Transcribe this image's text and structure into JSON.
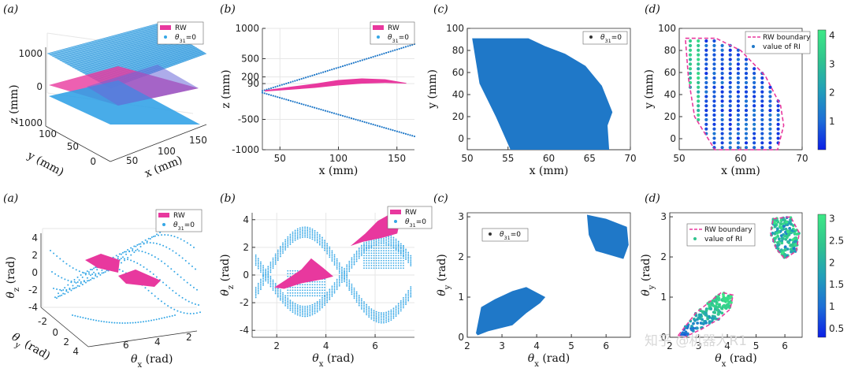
{
  "watermark": "知乎 @机器人R1",
  "colors": {
    "pink": "#e8389e",
    "blue": "#1f78c8",
    "light_blue": "#35a7e6",
    "grid": "#e6e6e6"
  },
  "chart_data": [
    {
      "id": "row1_a",
      "panel_label": "(a)",
      "type": "3d-surface",
      "title": "",
      "xlabel": "x (mm)",
      "ylabel": "y (mm)",
      "zlabel": "z (mm)",
      "x_ticks": [
        "50",
        "100",
        "150"
      ],
      "y_ticks": [
        "0",
        "50",
        "100"
      ],
      "z_ticks": [
        "-1000",
        "0",
        "1000"
      ],
      "legend": [
        "RW",
        "θ31=0"
      ],
      "series": [
        {
          "name": "RW",
          "kind": "surface",
          "color": "#e8389e",
          "z_range": [
            -200,
            200
          ]
        },
        {
          "name": "θ31=0",
          "kind": "points",
          "color": "#35a7e6",
          "z_range": [
            -1000,
            1000
          ]
        }
      ]
    },
    {
      "id": "row1_b",
      "panel_label": "(b)",
      "type": "line",
      "xlabel": "x (mm)",
      "ylabel": "z (mm)",
      "xlim": [
        35,
        165
      ],
      "ylim": [
        -1000,
        1000
      ],
      "x_ticks": [
        50,
        100,
        150
      ],
      "y_ticks": [
        -1000,
        -500,
        90,
        200,
        500,
        1000
      ],
      "legend": [
        "RW",
        "θ31=0"
      ],
      "series": [
        {
          "name": "θ31=0 upper",
          "kind": "dotted-line",
          "color": "#1f78c8",
          "x": [
            35,
            165
          ],
          "y": [
            -30,
            740
          ]
        },
        {
          "name": "θ31=0 lower",
          "kind": "dotted-line",
          "color": "#1f78c8",
          "x": [
            35,
            165
          ],
          "y": [
            -60,
            -780
          ]
        },
        {
          "name": "RW",
          "kind": "band",
          "color": "#e8389e",
          "x": [
            37,
            60,
            80,
            100,
            120,
            140,
            158
          ],
          "upper": [
            -20,
            40,
            90,
            150,
            175,
            160,
            100
          ],
          "lower": [
            -40,
            -10,
            20,
            60,
            90,
            100,
            90
          ]
        }
      ]
    },
    {
      "id": "row1_c",
      "panel_label": "(c)",
      "type": "scatter",
      "xlabel": "x (mm)",
      "ylabel": "y (mm)",
      "xlim": [
        50,
        70
      ],
      "ylim": [
        -10,
        100
      ],
      "x_ticks": [
        50,
        55,
        60,
        65,
        70
      ],
      "y_ticks": [
        0,
        20,
        40,
        60,
        80,
        100
      ],
      "legend": [
        "θ31=0"
      ],
      "series": [
        {
          "name": "θ31=0",
          "kind": "filled-region",
          "color": "#1f78c8",
          "x": [
            50.6,
            57.5,
            59.5,
            62,
            64.5,
            66.5,
            67.8,
            67.2,
            67.4,
            55.3,
            53.5,
            51.5,
            50.6
          ],
          "y": [
            91,
            91,
            84,
            77,
            66,
            48,
            24,
            12,
            -10,
            -10,
            20,
            50,
            91
          ]
        }
      ]
    },
    {
      "id": "row1_d",
      "panel_label": "(d)",
      "type": "scatter",
      "xlabel": "x (mm)",
      "ylabel": "y (mm)",
      "xlim": [
        50,
        70
      ],
      "ylim": [
        -10,
        100
      ],
      "x_ticks": [
        50,
        60,
        70
      ],
      "y_ticks": [
        0,
        20,
        40,
        60,
        80,
        100
      ],
      "legend": [
        "RW boundary",
        "value of RI"
      ],
      "colorbar": {
        "min": 0,
        "max": 4.2,
        "ticks": [
          1,
          2,
          3,
          4
        ]
      },
      "series": [
        {
          "name": "RW boundary",
          "kind": "dashed-line",
          "color": "#e8389e",
          "x": [
            51,
            56,
            60,
            64,
            66.5,
            67,
            66,
            55.8,
            52.5,
            51.5,
            51
          ],
          "y": [
            91,
            91,
            80,
            57,
            30,
            12,
            -10,
            -10,
            20,
            55,
            91
          ]
        },
        {
          "name": "value of RI",
          "kind": "colored-points",
          "colormap": "parula",
          "columns_x": [
            51.8,
            53.1,
            54.4,
            55.7,
            57.0,
            58.3,
            59.6,
            60.9,
            62.2,
            63.5,
            64.8,
            66.1
          ]
        }
      ]
    },
    {
      "id": "row2_a",
      "panel_label": "(a)",
      "type": "3d-scatter",
      "xlabel": "θx (rad)",
      "ylabel": "θy (rad)",
      "zlabel": "θz (rad)",
      "x_ticks": [
        "2",
        "4",
        "6"
      ],
      "y_ticks": [
        "-2",
        "0",
        "2",
        "4"
      ],
      "z_ticks": [
        "-4",
        "-2",
        "0",
        "2",
        "4"
      ],
      "legend": [
        "RW",
        "θ31=0"
      ],
      "series": [
        {
          "name": "RW",
          "kind": "patches",
          "color": "#e8389e"
        },
        {
          "name": "θ31=0",
          "kind": "points",
          "color": "#35a7e6"
        }
      ]
    },
    {
      "id": "row2_b",
      "panel_label": "(b)",
      "type": "scatter",
      "xlabel": "θx (rad)",
      "ylabel": "θz (rad)",
      "xlim": [
        1.0,
        7.6
      ],
      "ylim": [
        -4.5,
        4.5
      ],
      "x_ticks": [
        2,
        4,
        6
      ],
      "y_ticks": [
        -4,
        -2,
        0,
        2,
        4
      ],
      "legend": [
        "RW",
        "θ31=0"
      ],
      "series": [
        {
          "name": "RW",
          "kind": "patches",
          "color": "#e8389e",
          "patches": [
            {
              "x": [
                1.9,
                2.5,
                3.0,
                3.4,
                3.9,
                4.3,
                3.9,
                3.0,
                2.3,
                1.9
              ],
              "y": [
                -0.9,
                -0.2,
                0.4,
                1.2,
                0.5,
                -0.1,
                -0.3,
                -0.6,
                -1.0,
                -0.9
              ]
            },
            {
              "x": [
                5.0,
                5.6,
                6.1,
                6.6,
                7.0,
                6.9,
                6.3,
                5.5,
                5.0
              ],
              "y": [
                2.1,
                3.0,
                3.9,
                4.4,
                3.8,
                3.0,
                2.7,
                2.4,
                2.1
              ]
            }
          ]
        },
        {
          "name": "θ31=0",
          "kind": "bands",
          "color": "#35a7e6",
          "amplitude": 3.1,
          "period": 6.283,
          "phase": 1.57
        }
      ]
    },
    {
      "id": "row2_c",
      "panel_label": "(c)",
      "type": "scatter",
      "xlabel": "θx (rad)",
      "ylabel": "θy (rad)",
      "xlim": [
        2,
        6.7
      ],
      "ylim": [
        0,
        3.1
      ],
      "x_ticks": [
        2,
        3,
        4,
        5,
        6
      ],
      "y_ticks": [
        0,
        1,
        2,
        3
      ],
      "legend": [
        "θ31=0"
      ],
      "series": [
        {
          "name": "θ31=0",
          "kind": "filled-region",
          "color": "#1f78c8",
          "regions": [
            {
              "x": [
                2.25,
                2.4,
                2.8,
                3.3,
                3.7,
                4.25,
                4.1,
                3.7,
                3.3,
                2.6,
                2.3,
                2.25
              ],
              "y": [
                0.1,
                0.75,
                0.95,
                1.15,
                1.25,
                1.0,
                0.85,
                0.6,
                0.3,
                0.15,
                0.05,
                0.1
              ]
            },
            {
              "x": [
                5.45,
                6.0,
                6.6,
                6.65,
                6.5,
                5.7,
                5.5,
                5.45
              ],
              "y": [
                3.05,
                2.95,
                2.75,
                2.3,
                1.95,
                2.15,
                2.55,
                3.05
              ]
            }
          ]
        }
      ]
    },
    {
      "id": "row2_d",
      "panel_label": "(d)",
      "type": "scatter",
      "xlabel": "θx (rad)",
      "ylabel": "θy (rad)",
      "xlim": [
        2,
        6.6
      ],
      "ylim": [
        0,
        3.1
      ],
      "x_ticks": [
        2,
        3,
        4,
        5,
        6
      ],
      "y_ticks": [
        0,
        1,
        2,
        3
      ],
      "legend": [
        "RW boundary",
        "value of RI"
      ],
      "colorbar": {
        "min": 0.3,
        "max": 3.1,
        "ticks": [
          0.5,
          1,
          1.5,
          2,
          2.5,
          3
        ]
      },
      "series": [
        {
          "name": "RW boundary",
          "kind": "dashed-line",
          "color": "#e8389e",
          "regions": [
            {
              "x": [
                2.3,
                2.9,
                3.5,
                3.8,
                4.2,
                4.1,
                3.7,
                3.1,
                2.5,
                2.3
              ],
              "y": [
                0.05,
                0.6,
                0.95,
                1.12,
                1.05,
                0.7,
                0.45,
                0.2,
                0.0,
                0.05
              ]
            },
            {
              "x": [
                5.6,
                6.2,
                6.5,
                6.4,
                6.0,
                5.7,
                5.5,
                5.6
              ],
              "y": [
                2.95,
                3.0,
                2.6,
                2.15,
                1.95,
                2.2,
                2.6,
                2.95
              ]
            }
          ]
        },
        {
          "name": "value of RI",
          "kind": "colored-points",
          "colormap": "parula"
        }
      ]
    }
  ]
}
